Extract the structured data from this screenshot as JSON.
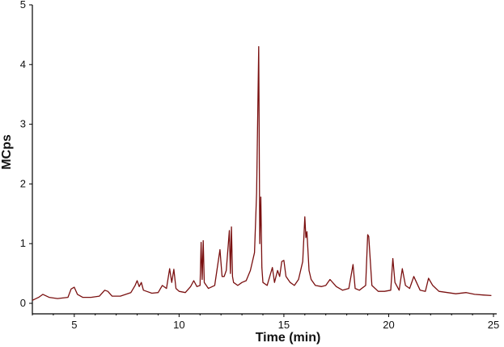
{
  "chart_data": {
    "type": "line",
    "title": "",
    "xlabel": "Time (min)",
    "ylabel": "MCps",
    "xlim": [
      3,
      25
    ],
    "ylim": [
      0,
      5
    ],
    "x_ticks": [
      5,
      10,
      15,
      20,
      25
    ],
    "y_ticks": [
      0,
      1,
      2,
      3,
      4,
      5
    ],
    "grid": false,
    "legend": "none",
    "line_color": "#7a1010",
    "series": [
      {
        "x": [
          3.0,
          3.3,
          3.5,
          3.8,
          4.2,
          4.7,
          4.85,
          5.0,
          5.15,
          5.4,
          5.8,
          6.2,
          6.45,
          6.6,
          6.8,
          7.2,
          7.7,
          7.9,
          8.0,
          8.1,
          8.2,
          8.3,
          8.45,
          8.7,
          9.0,
          9.2,
          9.4,
          9.55,
          9.65,
          9.75,
          9.85,
          10.0,
          10.3,
          10.55,
          10.7,
          10.85,
          11.0,
          11.05,
          11.1,
          11.15,
          11.2,
          11.4,
          11.7,
          11.95,
          12.05,
          12.15,
          12.25,
          12.4,
          12.45,
          12.5,
          12.55,
          12.6,
          12.8,
          13.0,
          13.2,
          13.4,
          13.6,
          13.7,
          13.8,
          13.85,
          13.9,
          13.95,
          14.0,
          14.2,
          14.45,
          14.55,
          14.7,
          14.8,
          14.9,
          15.0,
          15.1,
          15.3,
          15.5,
          15.7,
          15.9,
          16.0,
          16.05,
          16.1,
          16.2,
          16.3,
          16.5,
          16.8,
          17.0,
          17.2,
          17.5,
          17.8,
          18.1,
          18.3,
          18.4,
          18.6,
          18.9,
          19.0,
          19.05,
          19.2,
          19.5,
          19.8,
          20.1,
          20.2,
          20.3,
          20.5,
          20.65,
          20.8,
          21.0,
          21.2,
          21.5,
          21.75,
          21.9,
          22.1,
          22.4,
          22.8,
          23.2,
          23.7,
          24.1,
          24.5,
          24.9
        ],
        "y": [
          0.05,
          0.1,
          0.15,
          0.1,
          0.08,
          0.1,
          0.24,
          0.27,
          0.15,
          0.1,
          0.1,
          0.12,
          0.22,
          0.2,
          0.12,
          0.12,
          0.18,
          0.3,
          0.38,
          0.28,
          0.35,
          0.22,
          0.2,
          0.17,
          0.18,
          0.3,
          0.25,
          0.58,
          0.35,
          0.57,
          0.25,
          0.2,
          0.18,
          0.28,
          0.38,
          0.28,
          0.3,
          1.02,
          0.4,
          1.05,
          0.35,
          0.25,
          0.3,
          0.9,
          0.45,
          0.45,
          0.55,
          1.22,
          0.5,
          1.28,
          0.45,
          0.35,
          0.3,
          0.35,
          0.38,
          0.55,
          0.85,
          1.85,
          4.3,
          1.0,
          1.78,
          0.6,
          0.35,
          0.3,
          0.6,
          0.35,
          0.55,
          0.45,
          0.7,
          0.72,
          0.45,
          0.35,
          0.3,
          0.4,
          0.7,
          1.45,
          1.1,
          1.2,
          0.55,
          0.4,
          0.3,
          0.28,
          0.3,
          0.4,
          0.28,
          0.22,
          0.25,
          0.65,
          0.25,
          0.22,
          0.3,
          1.15,
          1.12,
          0.3,
          0.2,
          0.2,
          0.22,
          0.75,
          0.35,
          0.22,
          0.58,
          0.3,
          0.25,
          0.45,
          0.22,
          0.2,
          0.42,
          0.3,
          0.2,
          0.18,
          0.16,
          0.18,
          0.15,
          0.14,
          0.13
        ]
      }
    ]
  }
}
